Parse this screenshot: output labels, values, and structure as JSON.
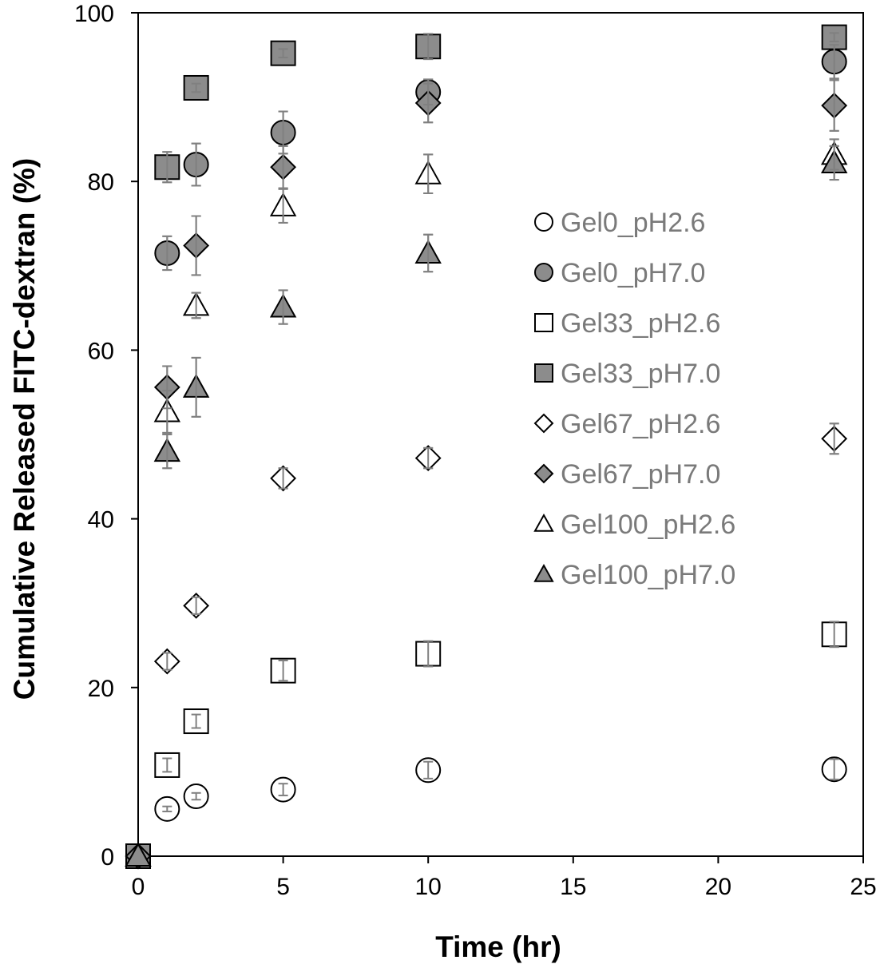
{
  "chart_data": {
    "type": "scatter",
    "xlabel": "Time (hr)",
    "ylabel": "Cumulative Released FITC-dextran (%)",
    "xlim": [
      0,
      25
    ],
    "ylim": [
      0,
      100
    ],
    "xticks": [
      "0",
      "5",
      "10",
      "15",
      "20",
      "25"
    ],
    "yticks": [
      "0",
      "20",
      "40",
      "60",
      "80",
      "100"
    ],
    "grid": false,
    "legend_position": "right-middle",
    "colors": {
      "filled": "#8c8c8c",
      "open": "#ffffff",
      "stroke": "#000000",
      "errorbar": "#808080"
    },
    "series": [
      {
        "name": "Gel0_pH2.6",
        "marker": "circle",
        "filled": false,
        "points": [
          {
            "x": 0,
            "y": 0,
            "err": 0
          },
          {
            "x": 1,
            "y": 5.6,
            "err": 0.3
          },
          {
            "x": 2,
            "y": 7.1,
            "err": 0.4
          },
          {
            "x": 5,
            "y": 7.9,
            "err": 0.7
          },
          {
            "x": 10,
            "y": 10.2,
            "err": 1.0
          },
          {
            "x": 24,
            "y": 10.3,
            "err": 1.2
          }
        ]
      },
      {
        "name": "Gel0_pH7.0",
        "marker": "circle",
        "filled": true,
        "points": [
          {
            "x": 0,
            "y": 0,
            "err": 0
          },
          {
            "x": 1,
            "y": 71.5,
            "err": 2.0
          },
          {
            "x": 2,
            "y": 82.0,
            "err": 2.5
          },
          {
            "x": 5,
            "y": 85.8,
            "err": 2.5
          },
          {
            "x": 10,
            "y": 90.6,
            "err": 1.5
          },
          {
            "x": 24,
            "y": 94.2,
            "err": 2.0
          }
        ]
      },
      {
        "name": "Gel33_pH2.6",
        "marker": "square",
        "filled": false,
        "points": [
          {
            "x": 0,
            "y": 0,
            "err": 0
          },
          {
            "x": 1,
            "y": 10.8,
            "err": 0.8
          },
          {
            "x": 2,
            "y": 16.0,
            "err": 0.8
          },
          {
            "x": 5,
            "y": 22.0,
            "err": 1.2
          },
          {
            "x": 10,
            "y": 24.0,
            "err": 1.5
          },
          {
            "x": 24,
            "y": 26.3,
            "err": 1.5
          }
        ]
      },
      {
        "name": "Gel33_pH7.0",
        "marker": "square",
        "filled": true,
        "points": [
          {
            "x": 0,
            "y": 0,
            "err": 0
          },
          {
            "x": 1,
            "y": 81.7,
            "err": 1.8
          },
          {
            "x": 2,
            "y": 91.1,
            "err": 0.5
          },
          {
            "x": 5,
            "y": 95.2,
            "err": 0.5
          },
          {
            "x": 10,
            "y": 96.0,
            "err": 1.5
          },
          {
            "x": 24,
            "y": 97.1,
            "err": 0.5
          }
        ]
      },
      {
        "name": "Gel67_pH2.6",
        "marker": "diamond",
        "filled": false,
        "points": [
          {
            "x": 0,
            "y": 0,
            "err": 0
          },
          {
            "x": 1,
            "y": 23.1,
            "err": 1.0
          },
          {
            "x": 2,
            "y": 29.7,
            "err": 1.0
          },
          {
            "x": 5,
            "y": 44.8,
            "err": 1.2
          },
          {
            "x": 10,
            "y": 47.2,
            "err": 1.2
          },
          {
            "x": 24,
            "y": 49.5,
            "err": 1.8
          }
        ]
      },
      {
        "name": "Gel67_pH7.0",
        "marker": "diamond",
        "filled": true,
        "points": [
          {
            "x": 0,
            "y": 0,
            "err": 0
          },
          {
            "x": 1,
            "y": 55.6,
            "err": 2.5
          },
          {
            "x": 2,
            "y": 72.4,
            "err": 3.5
          },
          {
            "x": 5,
            "y": 81.7,
            "err": 2.5
          },
          {
            "x": 10,
            "y": 89.3,
            "err": 2.3
          },
          {
            "x": 24,
            "y": 89.0,
            "err": 3.0
          }
        ]
      },
      {
        "name": "Gel100_pH2.6",
        "marker": "triangle",
        "filled": false,
        "points": [
          {
            "x": 0,
            "y": 0,
            "err": 0
          },
          {
            "x": 1,
            "y": 52.7,
            "err": 2.5
          },
          {
            "x": 2,
            "y": 65.3,
            "err": 1.5
          },
          {
            "x": 5,
            "y": 77.1,
            "err": 2.0
          },
          {
            "x": 10,
            "y": 80.9,
            "err": 2.3
          },
          {
            "x": 24,
            "y": 83.2,
            "err": 1.8
          }
        ]
      },
      {
        "name": "Gel100_pH7.0",
        "marker": "triangle",
        "filled": true,
        "points": [
          {
            "x": 0,
            "y": 0,
            "err": 0
          },
          {
            "x": 1,
            "y": 48.0,
            "err": 2.0
          },
          {
            "x": 2,
            "y": 55.6,
            "err": 3.5
          },
          {
            "x": 5,
            "y": 65.1,
            "err": 2.0
          },
          {
            "x": 10,
            "y": 71.5,
            "err": 2.2
          },
          {
            "x": 24,
            "y": 82.2,
            "err": 2.0
          }
        ]
      }
    ]
  }
}
